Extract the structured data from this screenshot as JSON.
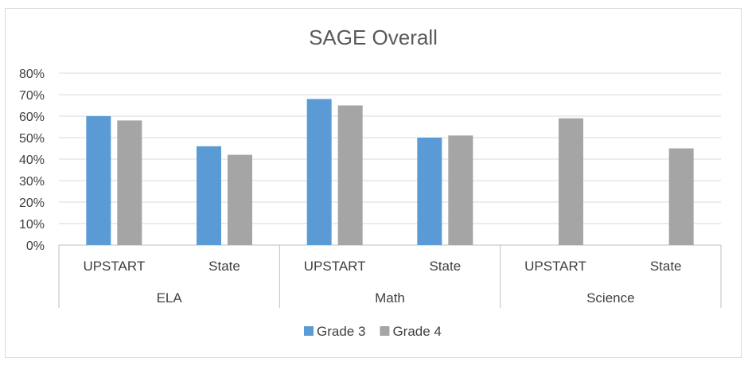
{
  "chart_data": {
    "type": "bar",
    "title": "SAGE Overall",
    "xlabel": "",
    "ylabel": "",
    "ylim": [
      0,
      0.8
    ],
    "y_ticks": [
      "0%",
      "10%",
      "20%",
      "30%",
      "40%",
      "50%",
      "60%",
      "70%",
      "80%"
    ],
    "y_tick_values": [
      0,
      0.1,
      0.2,
      0.3,
      0.4,
      0.5,
      0.6,
      0.7,
      0.8
    ],
    "grid": true,
    "legend_position": "bottom",
    "groups": [
      "ELA",
      "Math",
      "Science"
    ],
    "categories": [
      "UPSTART",
      "State",
      "UPSTART",
      "State",
      "UPSTART",
      "State"
    ],
    "category_group": [
      0,
      0,
      1,
      1,
      2,
      2
    ],
    "series": [
      {
        "name": "Grade 3",
        "color": "#5b9bd5",
        "values": [
          0.6,
          0.46,
          0.68,
          0.5,
          null,
          null
        ]
      },
      {
        "name": "Grade 4",
        "color": "#a5a5a5",
        "values": [
          0.58,
          0.42,
          0.65,
          0.51,
          0.59,
          0.45
        ]
      }
    ]
  }
}
